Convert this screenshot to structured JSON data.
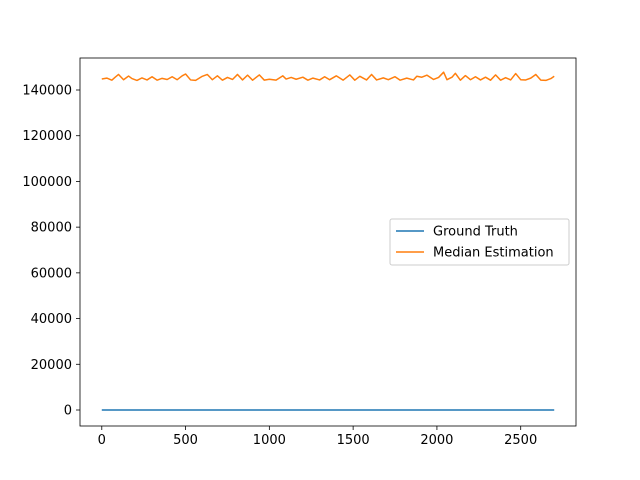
{
  "chart_data": {
    "type": "line",
    "title": "",
    "xlabel": "",
    "ylabel": "",
    "xlim": [
      -130,
      2830
    ],
    "ylim": [
      -7000,
      154000
    ],
    "xticks": [
      0,
      500,
      1000,
      1500,
      2000,
      2500
    ],
    "xtick_labels": [
      "0",
      "500",
      "1000",
      "1500",
      "2000",
      "2500"
    ],
    "yticks": [
      0,
      20000,
      40000,
      60000,
      80000,
      100000,
      120000,
      140000
    ],
    "ytick_labels": [
      "0",
      "20000",
      "40000",
      "60000",
      "80000",
      "100000",
      "120000",
      "140000"
    ],
    "grid": false,
    "legend_position": "center-right",
    "series": [
      {
        "name": "Ground Truth",
        "color": "#1f77b4",
        "x": [
          0,
          2700
        ],
        "y": [
          0,
          0
        ]
      },
      {
        "name": "Median Estimation",
        "color": "#ff7f0e",
        "x": [
          0,
          30,
          60,
          80,
          100,
          130,
          160,
          180,
          210,
          240,
          270,
          300,
          330,
          360,
          390,
          420,
          450,
          480,
          500,
          530,
          560,
          600,
          630,
          660,
          690,
          720,
          750,
          780,
          810,
          840,
          870,
          900,
          940,
          970,
          1000,
          1040,
          1080,
          1100,
          1130,
          1160,
          1200,
          1230,
          1260,
          1300,
          1330,
          1360,
          1400,
          1440,
          1480,
          1510,
          1540,
          1580,
          1610,
          1640,
          1680,
          1710,
          1750,
          1780,
          1820,
          1860,
          1880,
          1910,
          1940,
          1980,
          2010,
          2040,
          2060,
          2090,
          2110,
          2140,
          2170,
          2200,
          2230,
          2260,
          2290,
          2320,
          2350,
          2380,
          2410,
          2440,
          2470,
          2500,
          2530,
          2560,
          2590,
          2620,
          2650,
          2680,
          2700
        ],
        "y": [
          144800,
          145200,
          144300,
          145600,
          146800,
          144500,
          146100,
          145000,
          144200,
          145300,
          144400,
          145800,
          144300,
          145100,
          144600,
          145800,
          144500,
          146200,
          147000,
          144400,
          144200,
          146000,
          146800,
          144500,
          146200,
          144300,
          145500,
          144600,
          146800,
          144400,
          146500,
          144300,
          146600,
          144300,
          144700,
          144300,
          146200,
          144800,
          145500,
          144700,
          145600,
          144300,
          145200,
          144400,
          145800,
          144500,
          146200,
          144300,
          146600,
          144300,
          146000,
          144400,
          146800,
          144400,
          145300,
          144500,
          145800,
          144300,
          145200,
          144400,
          146000,
          145600,
          146500,
          144600,
          145500,
          147800,
          144500,
          145600,
          147300,
          144300,
          146300,
          144500,
          145800,
          144400,
          145600,
          144300,
          146600,
          144300,
          145400,
          144400,
          147200,
          144500,
          144400,
          145200,
          146800,
          144300,
          144200,
          145000,
          146000
        ]
      }
    ]
  }
}
